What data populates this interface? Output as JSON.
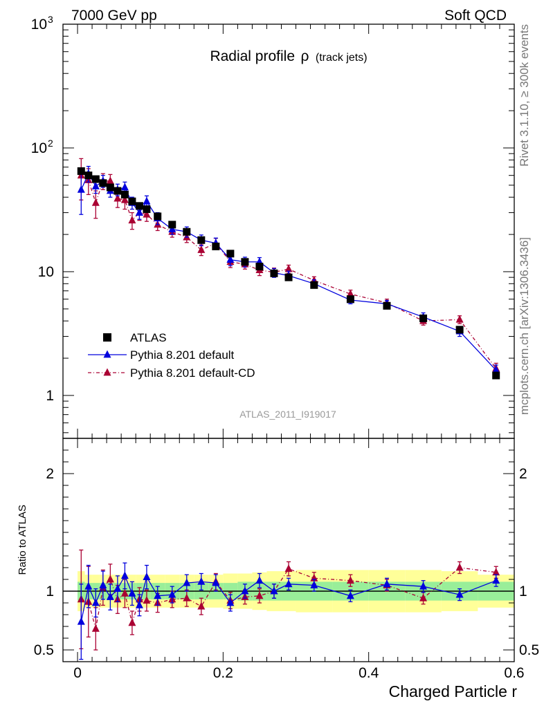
{
  "header": {
    "energy_label": "7000 GeV pp",
    "process_label": "Soft QCD",
    "side_top": "Rivet 3.1.10, ≥ 300k events",
    "side_bottom": "mcplots.cern.ch [arXiv:1306.3436]",
    "analysis_id": "ATLAS_2011_I919017"
  },
  "colors": {
    "atlas": "#000000",
    "pythia_default": "#0000dd",
    "pythia_cd": "#aa0033",
    "band_inner": "#99ee99",
    "band_outer": "#ffff99"
  },
  "chart_data": [
    {
      "type": "line",
      "title": "Radial profile ρ (track jets)",
      "title_main": "Radial profile",
      "title_symbol": "ρ",
      "title_sub": "(track jets)",
      "xlabel": "",
      "ylabel": "",
      "ylog": true,
      "xlim": [
        -0.02,
        0.6
      ],
      "ylim": [
        0.45,
        1000
      ],
      "y_ticks": [
        {
          "value": 1000,
          "label": "10",
          "sup": "3"
        },
        {
          "value": 100,
          "label": "10",
          "sup": "2"
        },
        {
          "value": 10,
          "label": "10",
          "sup": ""
        },
        {
          "value": 1,
          "label": "1",
          "sup": ""
        }
      ],
      "legend_position": "lower-left",
      "x": [
        0.005,
        0.015,
        0.025,
        0.035,
        0.045,
        0.055,
        0.065,
        0.075,
        0.085,
        0.095,
        0.11,
        0.13,
        0.15,
        0.17,
        0.19,
        0.21,
        0.23,
        0.25,
        0.27,
        0.29,
        0.325,
        0.375,
        0.425,
        0.475,
        0.525,
        0.575
      ],
      "series": [
        {
          "name": "ATLAS",
          "style": "square",
          "values": [
            65,
            60,
            56,
            52,
            48,
            45,
            42,
            37,
            34,
            32,
            28,
            24,
            21,
            18,
            16,
            14,
            12,
            11,
            9.7,
            9.0,
            7.8,
            6.0,
            5.3,
            4.2,
            3.4,
            1.45
          ]
        },
        {
          "name": "Pythia 8.201 default",
          "style": "solid",
          "values": [
            46,
            62,
            49,
            54,
            45,
            46,
            48,
            36,
            30,
            37,
            27,
            22,
            21,
            18,
            17,
            12.5,
            12,
            12,
            9.8,
            9.3,
            8.0,
            5.9,
            5.5,
            4.3,
            3.3,
            1.6
          ],
          "errors": [
            17,
            9,
            6,
            6,
            5,
            5,
            5,
            4,
            3.5,
            4,
            3,
            2,
            2,
            1.8,
            1.7,
            1.3,
            1.1,
            1.0,
            0.8,
            0.8,
            0.6,
            0.4,
            0.35,
            0.35,
            0.3,
            0.16
          ]
        },
        {
          "name": "Pythia 8.201 default-CD",
          "style": "dashdot",
          "values": [
            60,
            55,
            36,
            54,
            54,
            39,
            38,
            26,
            30,
            29,
            24,
            21,
            19,
            15,
            17,
            12,
            11.5,
            10.3,
            9.9,
            10.5,
            8.5,
            6.6,
            5.6,
            4.0,
            4.1,
            1.65
          ],
          "errors": [
            22,
            13,
            9,
            8,
            7,
            6,
            6,
            4,
            4,
            3.5,
            2.5,
            2,
            1.8,
            1.5,
            1.6,
            1.2,
            1.0,
            1.0,
            0.8,
            0.8,
            0.6,
            0.5,
            0.4,
            0.3,
            0.3,
            0.17
          ]
        }
      ]
    },
    {
      "type": "line",
      "title": "",
      "xlabel": "Charged Particle r",
      "ylabel": "Ratio to ATLAS",
      "xlim": [
        -0.02,
        0.6
      ],
      "ylim": [
        0.4,
        2.3
      ],
      "x_ticks": [
        0,
        0.2,
        0.4,
        0.6
      ],
      "x_tick_labels": [
        "0",
        "0.2",
        "0.4",
        "0.6"
      ],
      "y_ticks": [
        0.5,
        1,
        2
      ],
      "y_tick_labels": [
        "0.5",
        "1",
        "2"
      ],
      "bin_edges": [
        0,
        0.01,
        0.02,
        0.03,
        0.04,
        0.05,
        0.06,
        0.07,
        0.08,
        0.09,
        0.1,
        0.12,
        0.14,
        0.16,
        0.18,
        0.2,
        0.22,
        0.24,
        0.26,
        0.28,
        0.3,
        0.35,
        0.4,
        0.45,
        0.5,
        0.55,
        0.6
      ],
      "band_inner": [
        0.08,
        0.07,
        0.07,
        0.07,
        0.07,
        0.07,
        0.07,
        0.07,
        0.07,
        0.07,
        0.07,
        0.07,
        0.07,
        0.07,
        0.07,
        0.07,
        0.08,
        0.08,
        0.08,
        0.08,
        0.08,
        0.08,
        0.08,
        0.08,
        0.08,
        0.08
      ],
      "band_outer": [
        0.17,
        0.14,
        0.14,
        0.14,
        0.14,
        0.14,
        0.14,
        0.14,
        0.14,
        0.14,
        0.14,
        0.14,
        0.14,
        0.14,
        0.14,
        0.15,
        0.15,
        0.16,
        0.17,
        0.17,
        0.18,
        0.18,
        0.18,
        0.18,
        0.17,
        0.14
      ],
      "x": [
        0.005,
        0.015,
        0.025,
        0.035,
        0.045,
        0.055,
        0.065,
        0.075,
        0.085,
        0.095,
        0.11,
        0.13,
        0.15,
        0.17,
        0.19,
        0.21,
        0.23,
        0.25,
        0.27,
        0.29,
        0.325,
        0.375,
        0.425,
        0.475,
        0.525,
        0.575
      ],
      "series": [
        {
          "name": "Pythia 8.201 default",
          "style": "solid",
          "values": [
            0.74,
            1.04,
            0.9,
            1.05,
            0.95,
            1.02,
            1.13,
            0.98,
            0.88,
            1.12,
            0.96,
            0.97,
            1.07,
            1.08,
            1.07,
            0.9,
            1.0,
            1.09,
            1.0,
            1.06,
            1.05,
            0.96,
            1.06,
            1.04,
            0.97,
            1.09
          ],
          "errors": [
            0.32,
            0.18,
            0.12,
            0.12,
            0.11,
            0.11,
            0.11,
            0.1,
            0.09,
            0.1,
            0.08,
            0.07,
            0.07,
            0.07,
            0.07,
            0.07,
            0.06,
            0.06,
            0.06,
            0.05,
            0.05,
            0.05,
            0.05,
            0.05,
            0.05,
            0.05
          ]
        },
        {
          "name": "Pythia 8.201 default-CD",
          "style": "dashdot",
          "values": [
            0.93,
            0.91,
            0.68,
            1.03,
            1.1,
            0.93,
            0.98,
            0.73,
            0.93,
            0.92,
            0.9,
            0.93,
            0.94,
            0.87,
            1.08,
            0.92,
            0.95,
            0.96,
            1.0,
            1.19,
            1.11,
            1.09,
            1.05,
            0.94,
            1.2,
            1.16
          ],
          "errors": [
            0.42,
            0.3,
            0.18,
            0.15,
            0.13,
            0.12,
            0.12,
            0.1,
            0.1,
            0.09,
            0.08,
            0.07,
            0.07,
            0.07,
            0.07,
            0.07,
            0.06,
            0.06,
            0.06,
            0.06,
            0.05,
            0.05,
            0.05,
            0.05,
            0.05,
            0.05
          ]
        }
      ]
    }
  ]
}
